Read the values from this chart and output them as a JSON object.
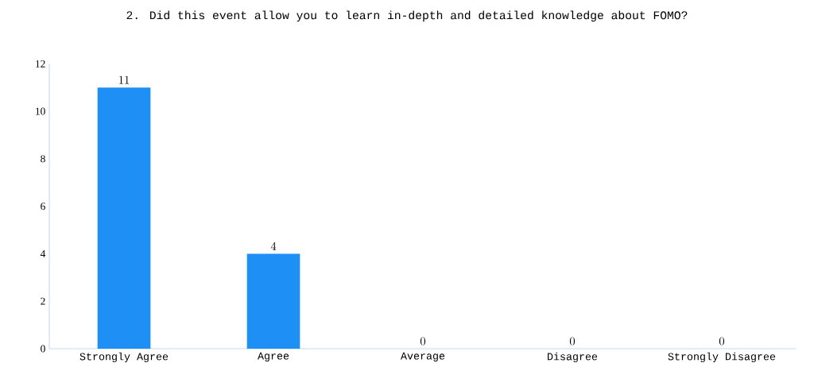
{
  "chart_data": {
    "type": "bar",
    "title": "2. Did this event allow you to learn in-depth and detailed knowledge about FOMO?",
    "categories": [
      "Strongly Agree",
      "Agree",
      "Average",
      "Disagree",
      "Strongly Disagree"
    ],
    "values": [
      11,
      4,
      0,
      0,
      0
    ],
    "color": "#1e90f5",
    "ylim": [
      0,
      12
    ],
    "yticks": [
      0,
      2,
      4,
      6,
      8,
      10,
      12
    ],
    "grid": false,
    "data_labels": true
  }
}
